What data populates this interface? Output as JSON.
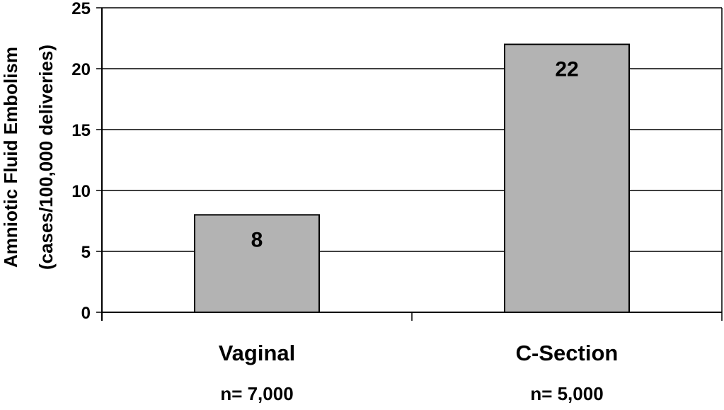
{
  "chart_data": {
    "type": "bar",
    "categories": [
      "Vaginal",
      "C-Section"
    ],
    "category_sublabels": [
      "n= 7,000",
      "n= 5,000"
    ],
    "values": [
      8,
      22
    ],
    "data_labels": [
      "8",
      "22"
    ],
    "title": "",
    "xlabel": "",
    "ylabel_lines": [
      "Amniotic Fluid Embolism",
      "(cases/100,000 deliveries)"
    ],
    "ylim": [
      0,
      25
    ],
    "yticks": [
      0,
      5,
      10,
      15,
      20,
      25
    ],
    "grid": true,
    "legend": "none",
    "bar_color": "#b3b3b3",
    "bar_edge_color": "#000000",
    "grid_color": "#000000"
  }
}
